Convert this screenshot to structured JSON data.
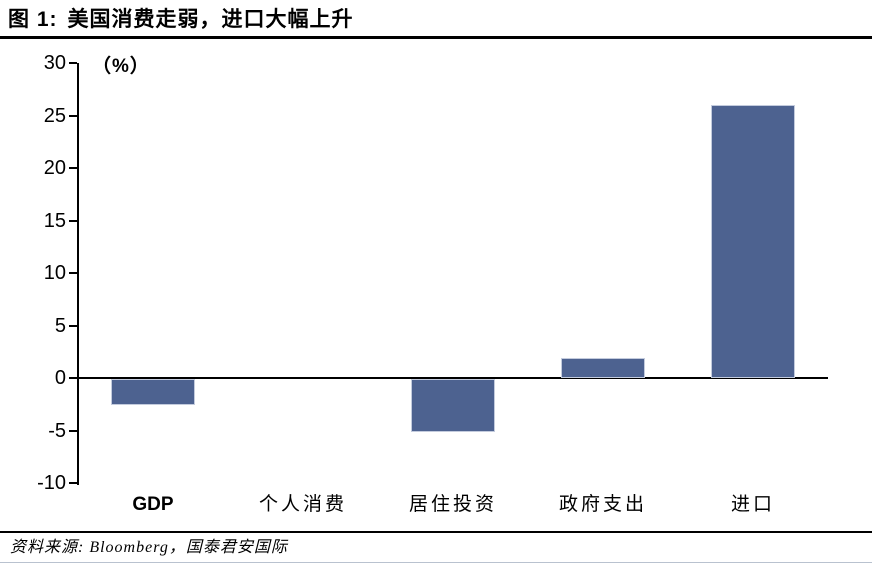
{
  "header": {
    "title_label": "图 1:",
    "title_text": "美国消费走弱，进口大幅上升"
  },
  "footer": {
    "source_note": "资料来源: Bloomberg，国泰君安国际"
  },
  "chart_data": {
    "type": "bar",
    "title": "美国消费走弱，进口大幅上升",
    "unit_label": "（%）",
    "categories": [
      "GDP",
      "个人消费",
      "居住投资",
      "政府支出",
      "进口"
    ],
    "values": [
      -2.5,
      0,
      -5,
      1.9,
      26
    ],
    "xlabel": "",
    "ylabel": "（%）",
    "ylim": [
      -10,
      30
    ],
    "ytick_step": 5,
    "yticks": [
      30,
      25,
      20,
      15,
      10,
      5,
      0,
      -5,
      -10
    ],
    "grid": false,
    "legend_position": "none",
    "bar_color": "#4D6290",
    "bar_border_color": "#c3cbdd",
    "axis_color": "#000000"
  }
}
